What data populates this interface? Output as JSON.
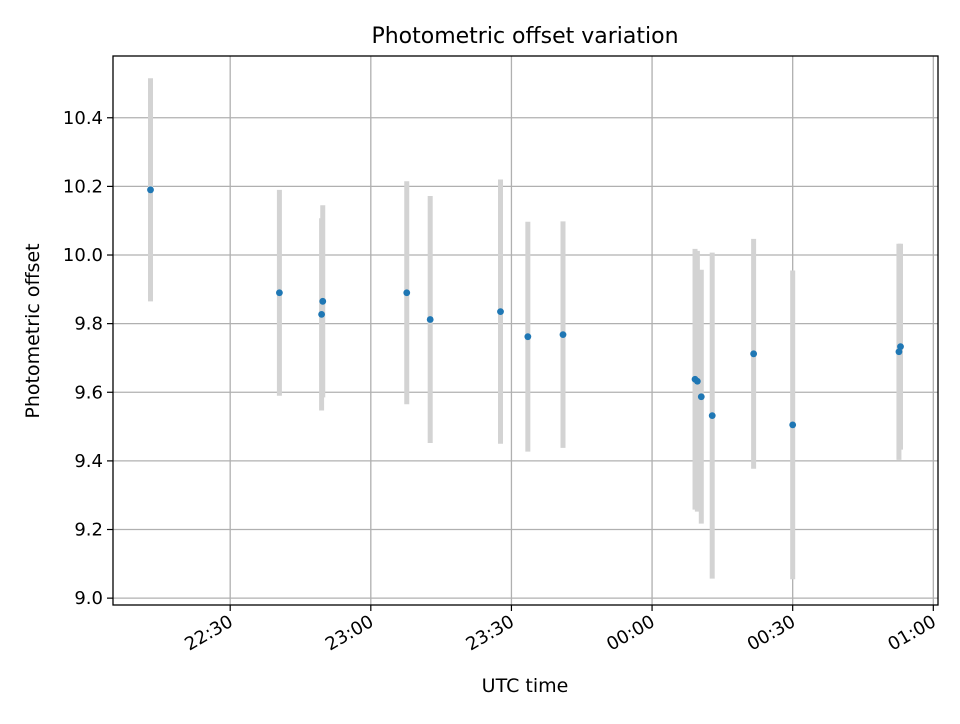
{
  "chart_data": {
    "type": "scatter",
    "title": "Photometric offset variation",
    "xlabel": "UTC time",
    "ylabel": "Photometric offset",
    "xlim": [
      "22:05",
      "01:01"
    ],
    "ylim": [
      8.98,
      10.58
    ],
    "x_ticks": [
      "22:30",
      "23:00",
      "23:30",
      "00:00",
      "00:30",
      "01:00"
    ],
    "y_ticks": [
      "9.0",
      "9.2",
      "9.4",
      "9.6",
      "9.8",
      "10.0",
      "10.2",
      "10.4"
    ],
    "grid": true,
    "marker_color": "#1f77b4",
    "errorbar_color": "#d3d3d3",
    "points": [
      {
        "time": "22:13:00",
        "offset": 10.19,
        "low": 9.865,
        "high": 10.515
      },
      {
        "time": "22:40:30",
        "offset": 9.89,
        "low": 9.59,
        "high": 10.19
      },
      {
        "time": "22:49:30",
        "offset": 9.827,
        "low": 9.547,
        "high": 10.107
      },
      {
        "time": "22:49:45",
        "offset": 9.865,
        "low": 9.585,
        "high": 10.145
      },
      {
        "time": "23:07:40",
        "offset": 9.89,
        "low": 9.565,
        "high": 10.215
      },
      {
        "time": "23:12:40",
        "offset": 9.812,
        "low": 9.452,
        "high": 10.172
      },
      {
        "time": "23:27:40",
        "offset": 9.835,
        "low": 9.45,
        "high": 10.22
      },
      {
        "time": "23:33:30",
        "offset": 9.762,
        "low": 9.427,
        "high": 10.097
      },
      {
        "time": "23:41:00",
        "offset": 9.768,
        "low": 9.438,
        "high": 10.098
      },
      {
        "time": "00:09:10",
        "offset": 9.638,
        "low": 9.258,
        "high": 10.018
      },
      {
        "time": "00:09:40",
        "offset": 9.632,
        "low": 9.252,
        "high": 10.012
      },
      {
        "time": "00:10:30",
        "offset": 9.587,
        "low": 9.217,
        "high": 9.957
      },
      {
        "time": "00:12:50",
        "offset": 9.532,
        "low": 9.057,
        "high": 10.007
      },
      {
        "time": "00:21:40",
        "offset": 9.712,
        "low": 9.377,
        "high": 10.047
      },
      {
        "time": "00:30:00",
        "offset": 9.505,
        "low": 9.055,
        "high": 9.955
      },
      {
        "time": "00:52:40",
        "offset": 9.718,
        "low": 9.403,
        "high": 10.033
      },
      {
        "time": "00:53:00",
        "offset": 9.733,
        "low": 9.433,
        "high": 10.033
      }
    ]
  }
}
